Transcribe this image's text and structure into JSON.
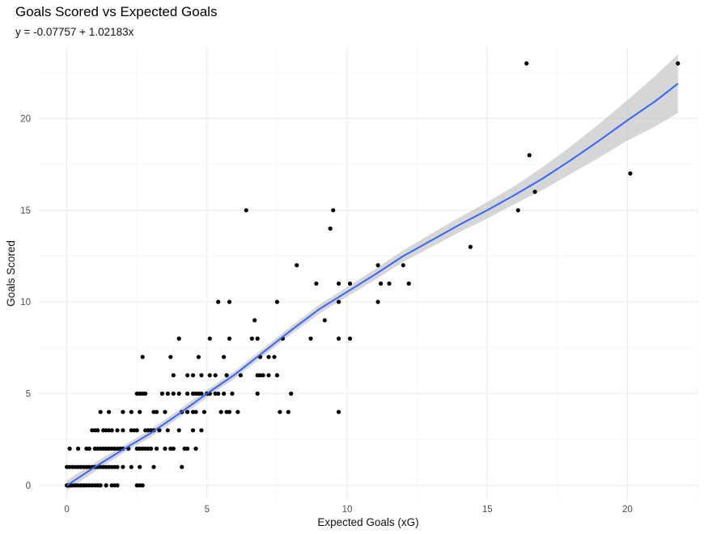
{
  "chart_data": {
    "type": "scatter",
    "title": "Goals Scored vs Expected Goals",
    "subtitle": "y = -0.07757 + 1.02183x",
    "xlabel": "Expected Goals (xG)",
    "ylabel": "Goals Scored",
    "xlim": [
      -1.0,
      22.5
    ],
    "ylim": [
      -0.8,
      23.9
    ],
    "x_ticks": [
      0,
      5,
      10,
      15,
      20
    ],
    "y_ticks": [
      0,
      5,
      10,
      15,
      20
    ],
    "grid": true,
    "colors": {
      "points": "#000000",
      "trend": "#3366ff",
      "ribbon": "#bdbdbd"
    },
    "points": [
      [
        0.0,
        0
      ],
      [
        0.05,
        0
      ],
      [
        0.1,
        0
      ],
      [
        0.15,
        0
      ],
      [
        0.2,
        0
      ],
      [
        0.3,
        0
      ],
      [
        0.4,
        0
      ],
      [
        0.5,
        0
      ],
      [
        0.6,
        0
      ],
      [
        0.7,
        0
      ],
      [
        0.8,
        0
      ],
      [
        0.9,
        0
      ],
      [
        1.0,
        0
      ],
      [
        1.1,
        0
      ],
      [
        1.2,
        0
      ],
      [
        1.4,
        0
      ],
      [
        1.6,
        0
      ],
      [
        1.7,
        0
      ],
      [
        1.8,
        0
      ],
      [
        2.5,
        0
      ],
      [
        2.6,
        0
      ],
      [
        2.7,
        0
      ],
      [
        0.0,
        1
      ],
      [
        0.1,
        1
      ],
      [
        0.2,
        1
      ],
      [
        0.3,
        1
      ],
      [
        0.4,
        1
      ],
      [
        0.5,
        1
      ],
      [
        0.6,
        1
      ],
      [
        0.7,
        1
      ],
      [
        0.8,
        1
      ],
      [
        0.9,
        1
      ],
      [
        1.0,
        1
      ],
      [
        1.1,
        1
      ],
      [
        1.2,
        1
      ],
      [
        1.3,
        1
      ],
      [
        1.4,
        1
      ],
      [
        1.5,
        1
      ],
      [
        1.6,
        1
      ],
      [
        1.7,
        1
      ],
      [
        1.8,
        1
      ],
      [
        2.0,
        1
      ],
      [
        2.3,
        1
      ],
      [
        2.6,
        1
      ],
      [
        3.1,
        1
      ],
      [
        4.1,
        1
      ],
      [
        0.1,
        2
      ],
      [
        0.4,
        2
      ],
      [
        0.7,
        2
      ],
      [
        0.8,
        2
      ],
      [
        1.0,
        2
      ],
      [
        1.1,
        2
      ],
      [
        1.2,
        2
      ],
      [
        1.3,
        2
      ],
      [
        1.4,
        2
      ],
      [
        1.5,
        2
      ],
      [
        1.6,
        2
      ],
      [
        1.7,
        2
      ],
      [
        1.8,
        2
      ],
      [
        1.9,
        2
      ],
      [
        2.0,
        2
      ],
      [
        2.2,
        2
      ],
      [
        2.5,
        2
      ],
      [
        2.6,
        2
      ],
      [
        2.7,
        2
      ],
      [
        2.8,
        2
      ],
      [
        2.9,
        2
      ],
      [
        3.0,
        2
      ],
      [
        3.2,
        2
      ],
      [
        3.5,
        2
      ],
      [
        3.7,
        2
      ],
      [
        3.8,
        2
      ],
      [
        4.2,
        2
      ],
      [
        4.3,
        2
      ],
      [
        4.6,
        2
      ],
      [
        0.9,
        3
      ],
      [
        1.0,
        3
      ],
      [
        1.1,
        3
      ],
      [
        1.3,
        3
      ],
      [
        1.4,
        3
      ],
      [
        1.5,
        3
      ],
      [
        1.6,
        3
      ],
      [
        1.8,
        3
      ],
      [
        2.0,
        3
      ],
      [
        2.3,
        3
      ],
      [
        2.4,
        3
      ],
      [
        2.5,
        3
      ],
      [
        2.8,
        3
      ],
      [
        2.9,
        3
      ],
      [
        3.0,
        3
      ],
      [
        3.1,
        3
      ],
      [
        3.3,
        3
      ],
      [
        3.6,
        3
      ],
      [
        4.0,
        3
      ],
      [
        4.5,
        3
      ],
      [
        4.8,
        3
      ],
      [
        1.2,
        4
      ],
      [
        1.5,
        4
      ],
      [
        2.0,
        4
      ],
      [
        2.3,
        4
      ],
      [
        2.6,
        4
      ],
      [
        3.1,
        4
      ],
      [
        3.2,
        4
      ],
      [
        3.5,
        4
      ],
      [
        4.1,
        4
      ],
      [
        4.3,
        4
      ],
      [
        4.5,
        4
      ],
      [
        4.6,
        4
      ],
      [
        4.9,
        4
      ],
      [
        5.5,
        4
      ],
      [
        5.7,
        4
      ],
      [
        5.8,
        4
      ],
      [
        6.1,
        4
      ],
      [
        7.6,
        4
      ],
      [
        7.9,
        4
      ],
      [
        9.7,
        4
      ],
      [
        2.5,
        5
      ],
      [
        2.6,
        5
      ],
      [
        2.7,
        5
      ],
      [
        2.8,
        5
      ],
      [
        3.4,
        5
      ],
      [
        3.6,
        5
      ],
      [
        3.8,
        5
      ],
      [
        4.0,
        5
      ],
      [
        4.3,
        5
      ],
      [
        4.5,
        5
      ],
      [
        4.6,
        5
      ],
      [
        4.7,
        5
      ],
      [
        4.8,
        5
      ],
      [
        5.0,
        5
      ],
      [
        5.1,
        5
      ],
      [
        5.3,
        5
      ],
      [
        5.4,
        5
      ],
      [
        5.6,
        5
      ],
      [
        5.9,
        5
      ],
      [
        6.8,
        5
      ],
      [
        8.0,
        5
      ],
      [
        3.8,
        6
      ],
      [
        4.3,
        6
      ],
      [
        4.5,
        6
      ],
      [
        4.8,
        6
      ],
      [
        5.1,
        6
      ],
      [
        5.3,
        6
      ],
      [
        5.7,
        6
      ],
      [
        6.2,
        6
      ],
      [
        6.8,
        6
      ],
      [
        6.9,
        6
      ],
      [
        7.0,
        6
      ],
      [
        7.2,
        6
      ],
      [
        7.5,
        6
      ],
      [
        2.7,
        7
      ],
      [
        3.7,
        7
      ],
      [
        4.7,
        7
      ],
      [
        5.6,
        7
      ],
      [
        6.9,
        7
      ],
      [
        7.2,
        7
      ],
      [
        7.4,
        7
      ],
      [
        4.0,
        8
      ],
      [
        5.1,
        8
      ],
      [
        5.8,
        8
      ],
      [
        6.6,
        8
      ],
      [
        6.8,
        8
      ],
      [
        7.7,
        8
      ],
      [
        8.7,
        8
      ],
      [
        9.7,
        8
      ],
      [
        10.1,
        8
      ],
      [
        6.7,
        9
      ],
      [
        9.2,
        9
      ],
      [
        5.4,
        10
      ],
      [
        5.8,
        10
      ],
      [
        7.5,
        10
      ],
      [
        9.7,
        10
      ],
      [
        11.1,
        10
      ],
      [
        8.9,
        11
      ],
      [
        9.7,
        11
      ],
      [
        10.1,
        11
      ],
      [
        11.2,
        11
      ],
      [
        11.5,
        11
      ],
      [
        12.2,
        11
      ],
      [
        8.2,
        12
      ],
      [
        11.1,
        12
      ],
      [
        12.0,
        12
      ],
      [
        14.4,
        13
      ],
      [
        9.4,
        14
      ],
      [
        6.4,
        15
      ],
      [
        9.5,
        15
      ],
      [
        16.1,
        15
      ],
      [
        16.7,
        16
      ],
      [
        20.1,
        17
      ],
      [
        16.5,
        18
      ],
      [
        16.4,
        23
      ],
      [
        21.8,
        23
      ]
    ],
    "trend": [
      [
        0,
        0.0
      ],
      [
        1,
        1.0
      ],
      [
        2,
        1.95
      ],
      [
        3,
        2.85
      ],
      [
        4,
        3.9
      ],
      [
        5,
        5.0
      ],
      [
        6,
        6.05
      ],
      [
        7,
        7.25
      ],
      [
        8,
        8.45
      ],
      [
        9,
        9.6
      ],
      [
        10,
        10.55
      ],
      [
        11,
        11.5
      ],
      [
        12,
        12.5
      ],
      [
        13,
        13.35
      ],
      [
        14,
        14.2
      ],
      [
        15,
        15.0
      ],
      [
        16,
        15.85
      ],
      [
        17,
        16.75
      ],
      [
        18,
        17.75
      ],
      [
        19,
        18.8
      ],
      [
        20,
        19.9
      ],
      [
        21,
        20.95
      ],
      [
        21.8,
        21.9
      ]
    ],
    "ribbon_halfwidth": [
      [
        0,
        0.28
      ],
      [
        2,
        0.2
      ],
      [
        4,
        0.22
      ],
      [
        6,
        0.2
      ],
      [
        8,
        0.22
      ],
      [
        10,
        0.26
      ],
      [
        12,
        0.32
      ],
      [
        14,
        0.4
      ],
      [
        16,
        0.5
      ],
      [
        18,
        0.75
      ],
      [
        20,
        1.1
      ],
      [
        21.8,
        1.6
      ]
    ]
  }
}
